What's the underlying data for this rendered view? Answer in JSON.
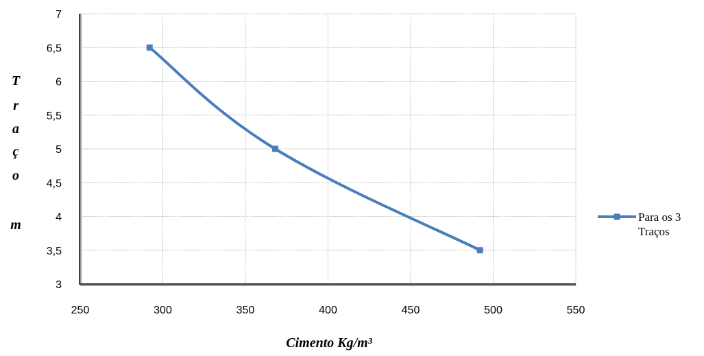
{
  "chart_data": {
    "type": "line",
    "title": "",
    "xlabel": "Cimento  Kg/m³",
    "ylabel_letters": [
      "T",
      "r",
      "a",
      "ç",
      "o",
      "",
      "m"
    ],
    "xlim": [
      250,
      550
    ],
    "ylim": [
      3,
      7
    ],
    "xticks": [
      250,
      300,
      350,
      400,
      450,
      500,
      550
    ],
    "yticks": [
      "3",
      "3,5",
      "4",
      "4,5",
      "5",
      "5,5",
      "6",
      "6,5",
      "7"
    ],
    "grid": true,
    "legend_position": "right",
    "series": [
      {
        "name_lines": [
          "Para os 3",
          "Traços"
        ],
        "color": "#4a7dbd",
        "x": [
          292,
          368,
          492
        ],
        "y": [
          6.5,
          5.0,
          3.5
        ]
      }
    ]
  }
}
